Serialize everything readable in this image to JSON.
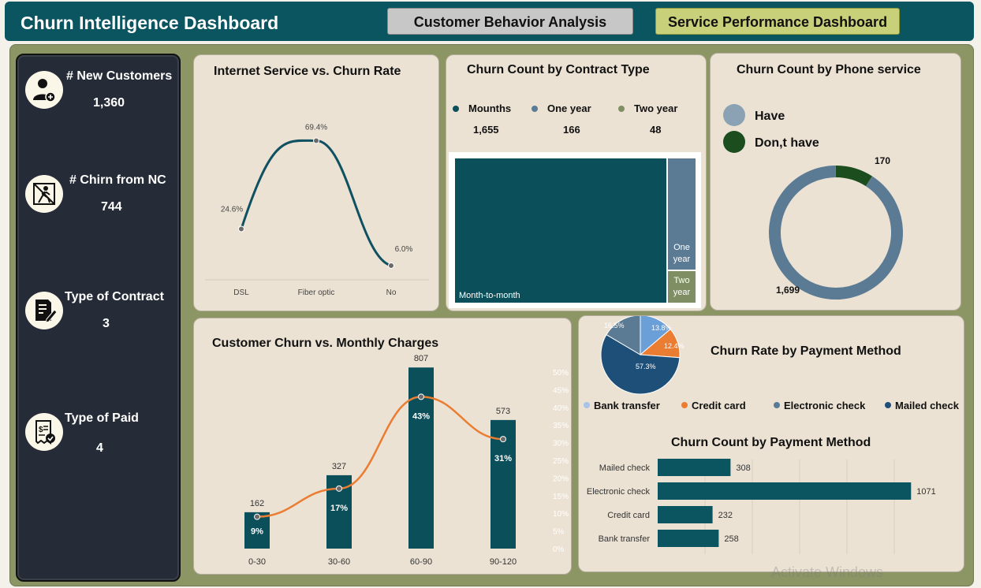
{
  "header": {
    "title": "Churn Intelligence Dashboard",
    "tabs": [
      {
        "label": "Customer Behavior Analysis"
      },
      {
        "label": "Service Performance Dashboard"
      }
    ]
  },
  "sidebar": {
    "kpis": [
      {
        "label": "# New Customers",
        "value": "1,360",
        "icon": "add-user-icon"
      },
      {
        "label": "# Chirn from NC",
        "value": "744",
        "icon": "leaving-person-icon"
      },
      {
        "label": "Type of Contract",
        "value": "3",
        "icon": "contract-edit-icon"
      },
      {
        "label": "Type of Paid",
        "value": "4",
        "icon": "bill-payment-icon"
      }
    ]
  },
  "cards": {
    "internet": {
      "title": "Internet Service vs. Churn Rate"
    },
    "contract": {
      "title": "Churn Count by Contract Type"
    },
    "phone": {
      "title": "Churn Count by Phone service"
    },
    "monthly": {
      "title": "Customer Churn vs. Monthly Charges"
    },
    "payment_rate": {
      "title": "Churn Rate by Payment Method"
    },
    "payment_count": {
      "title": "Churn Count by Payment Method"
    }
  },
  "chart_data": [
    {
      "id": "internet",
      "type": "line",
      "categories": [
        "DSL",
        "Fiber optic",
        "No"
      ],
      "values": [
        24.6,
        69.4,
        6.0
      ],
      "data_labels": [
        "24.6%",
        "69.4%",
        "6.0%"
      ],
      "ylim": [
        0,
        80
      ]
    },
    {
      "id": "contract",
      "type": "treemap",
      "legend": [
        {
          "name": "Mounths",
          "value": "1,655",
          "color": "#0b4f5a"
        },
        {
          "name": "One year",
          "value": "166",
          "color": "#5b7a93"
        },
        {
          "name": "Two year",
          "value": "48",
          "color": "#7f8f63"
        }
      ],
      "values": [
        1655,
        166,
        48
      ],
      "tile_labels": [
        "Month-to-month",
        "One year",
        "Two year"
      ],
      "colors": [
        "#0b4f5a",
        "#5b7a93",
        "#7f8f63"
      ]
    },
    {
      "id": "phone",
      "type": "pie",
      "subtype": "donut",
      "legend": [
        {
          "name": "Have",
          "color": "#8aa2b4"
        },
        {
          "name": "Don,t have",
          "color": "#1b4d1f"
        }
      ],
      "values": [
        1699,
        170
      ],
      "data_labels": [
        "1,699",
        "170"
      ],
      "colors": [
        "#5b7a93",
        "#1b4d1f"
      ]
    },
    {
      "id": "monthly",
      "type": "bar",
      "categories": [
        "0-30",
        "30-60",
        "60-90",
        "90-120"
      ],
      "series": [
        {
          "values": [
            162,
            327,
            807,
            573
          ],
          "color": "#0b4f5a"
        },
        {
          "values": [
            9,
            17,
            43,
            31
          ],
          "color": "#ea7d32",
          "axis": "secondary"
        }
      ],
      "bar_labels": [
        "162",
        "327",
        "807",
        "573"
      ],
      "line_labels": [
        "9%",
        "17%",
        "43%",
        "31%"
      ],
      "ylim": [
        0,
        850
      ],
      "y2lim": [
        0,
        50
      ],
      "y2ticks": [
        "0%",
        "5%",
        "10%",
        "15%",
        "20%",
        "25%",
        "30%",
        "35%",
        "40%",
        "45%",
        "50%"
      ]
    },
    {
      "id": "payment_rate",
      "type": "pie",
      "categories": [
        "Bank transfer",
        "Credit card",
        "Electronic check",
        "Mailed check"
      ],
      "values": [
        13.8,
        12.4,
        57.3,
        16.5
      ],
      "data_labels": [
        "13.8%",
        "12.4%",
        "57.3%",
        "16.5%"
      ],
      "colors": [
        "#6a9fd8",
        "#ea7d32",
        "#1e4f78",
        "#5b7a93"
      ],
      "legend_colors": [
        "#a9c3e8",
        "#ea7d32",
        "#5b7a93",
        "#1e4f78"
      ]
    },
    {
      "id": "payment_count",
      "type": "bar",
      "orientation": "horizontal",
      "categories": [
        "Mailed check",
        "Electronic check",
        "Credit card",
        "Bank transfer"
      ],
      "values": [
        308,
        1071,
        232,
        258
      ],
      "data_labels": [
        "308",
        "1071",
        "232",
        "258"
      ],
      "xlim": [
        0,
        1200
      ],
      "color": "#0b5560"
    }
  ],
  "watermark": "Activate Windows"
}
